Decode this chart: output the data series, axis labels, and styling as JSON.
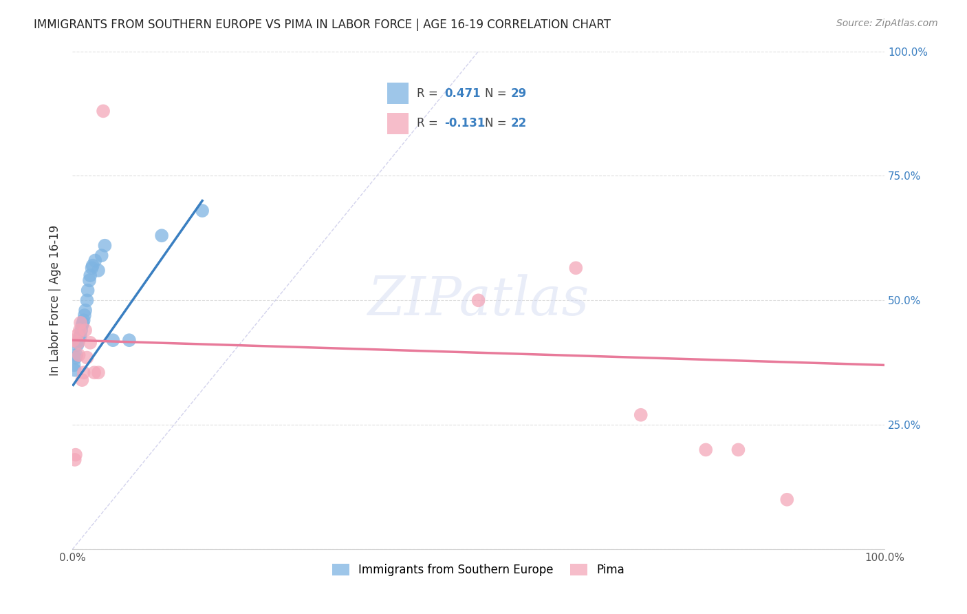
{
  "title": "IMMIGRANTS FROM SOUTHERN EUROPE VS PIMA IN LABOR FORCE | AGE 16-19 CORRELATION CHART",
  "source": "Source: ZipAtlas.com",
  "ylabel": "In Labor Force | Age 16-19",
  "xlim": [
    0.0,
    1.0
  ],
  "ylim": [
    0.0,
    1.0
  ],
  "xticks": [
    0.0,
    0.1,
    0.2,
    0.3,
    0.4,
    0.5,
    0.6,
    0.7,
    0.8,
    0.9,
    1.0
  ],
  "yticks": [
    0.0,
    0.25,
    0.5,
    0.75,
    1.0
  ],
  "xticklabels": [
    "0.0%",
    "",
    "",
    "",
    "",
    "",
    "",
    "",
    "",
    "",
    "100.0%"
  ],
  "yticklabels_right": [
    "",
    "25.0%",
    "50.0%",
    "75.0%",
    "100.0%"
  ],
  "watermark": "ZIPatlas",
  "blue_color": "#7eb4e2",
  "pink_color": "#f4a7b9",
  "line_blue": "#3a7fc1",
  "line_pink": "#e87a9a",
  "diag_color": "#c8c8e8",
  "legend_r1_val": "0.471",
  "legend_n1_val": "29",
  "legend_r2_val": "-0.131",
  "legend_n2_val": "22",
  "blue_scatter_x": [
    0.002,
    0.003,
    0.004,
    0.005,
    0.006,
    0.007,
    0.008,
    0.009,
    0.01,
    0.011,
    0.012,
    0.013,
    0.014,
    0.015,
    0.016,
    0.018,
    0.019,
    0.021,
    0.022,
    0.024,
    0.025,
    0.028,
    0.032,
    0.036,
    0.04,
    0.05,
    0.07,
    0.11,
    0.16
  ],
  "blue_scatter_y": [
    0.37,
    0.36,
    0.385,
    0.39,
    0.41,
    0.415,
    0.42,
    0.425,
    0.43,
    0.44,
    0.45,
    0.455,
    0.46,
    0.47,
    0.48,
    0.5,
    0.52,
    0.54,
    0.55,
    0.565,
    0.57,
    0.58,
    0.56,
    0.59,
    0.61,
    0.42,
    0.42,
    0.63,
    0.68
  ],
  "pink_scatter_x": [
    0.001,
    0.003,
    0.004,
    0.006,
    0.007,
    0.008,
    0.009,
    0.01,
    0.012,
    0.014,
    0.016,
    0.018,
    0.022,
    0.027,
    0.032,
    0.038,
    0.5,
    0.62,
    0.7,
    0.78,
    0.82,
    0.88
  ],
  "pink_scatter_y": [
    0.42,
    0.18,
    0.19,
    0.43,
    0.415,
    0.39,
    0.44,
    0.455,
    0.34,
    0.355,
    0.44,
    0.385,
    0.415,
    0.355,
    0.355,
    0.88,
    0.5,
    0.565,
    0.27,
    0.2,
    0.2,
    0.1
  ],
  "blue_line_x": [
    0.001,
    0.16
  ],
  "blue_line_y": [
    0.33,
    0.7
  ],
  "pink_line_x": [
    0.0,
    1.0
  ],
  "pink_line_y": [
    0.42,
    0.37
  ]
}
